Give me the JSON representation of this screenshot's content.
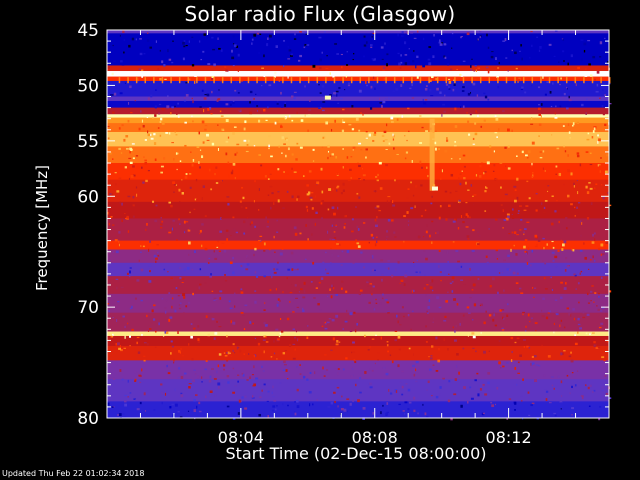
{
  "chart_data": {
    "type": "heatmap",
    "title": "Solar radio Flux (Glasgow)",
    "ylabel": "Frequency [MHz]",
    "xlabel": "Start Time (02-Dec-15 08:00:00)",
    "ylim": [
      45,
      80
    ],
    "xlim_minutes": [
      0,
      15
    ],
    "y_ticks": [
      "45",
      "50",
      "55",
      "60",
      "70",
      "80"
    ],
    "y_tick_values": [
      45,
      50,
      55,
      60,
      70,
      80
    ],
    "x_ticks": [
      "08:04",
      "08:08",
      "08:12"
    ],
    "x_tick_minutes": [
      4,
      8,
      12
    ],
    "bands": [
      {
        "from": 45.0,
        "to": 45.3,
        "level": 0.3
      },
      {
        "from": 45.3,
        "to": 48.2,
        "level": 0.12
      },
      {
        "from": 48.2,
        "to": 48.7,
        "level": 0.55
      },
      {
        "from": 48.7,
        "to": 49.2,
        "level": 1.0
      },
      {
        "from": 49.2,
        "to": 49.6,
        "level": 0.62
      },
      {
        "from": 49.6,
        "to": 51.0,
        "level": 0.18
      },
      {
        "from": 51.0,
        "to": 51.4,
        "level": 0.3
      },
      {
        "from": 51.4,
        "to": 52.0,
        "level": 0.14
      },
      {
        "from": 52.0,
        "to": 52.6,
        "level": 0.48
      },
      {
        "from": 52.6,
        "to": 52.9,
        "level": 0.9
      },
      {
        "from": 52.9,
        "to": 53.4,
        "level": 0.75
      },
      {
        "from": 53.4,
        "to": 54.2,
        "level": 0.7
      },
      {
        "from": 54.2,
        "to": 55.5,
        "level": 0.8
      },
      {
        "from": 55.5,
        "to": 57.0,
        "level": 0.7
      },
      {
        "from": 57.0,
        "to": 58.5,
        "level": 0.62
      },
      {
        "from": 58.5,
        "to": 60.5,
        "level": 0.56
      },
      {
        "from": 60.5,
        "to": 62.0,
        "level": 0.5
      },
      {
        "from": 62.0,
        "to": 64.0,
        "level": 0.46
      },
      {
        "from": 64.0,
        "to": 64.8,
        "level": 0.62
      },
      {
        "from": 64.8,
        "to": 66.0,
        "level": 0.4
      },
      {
        "from": 66.0,
        "to": 67.2,
        "level": 0.3
      },
      {
        "from": 67.2,
        "to": 68.8,
        "level": 0.46
      },
      {
        "from": 68.8,
        "to": 70.5,
        "level": 0.4
      },
      {
        "from": 70.5,
        "to": 72.2,
        "level": 0.44
      },
      {
        "from": 72.2,
        "to": 72.6,
        "level": 0.85
      },
      {
        "from": 72.6,
        "to": 73.5,
        "level": 0.5
      },
      {
        "from": 73.5,
        "to": 74.8,
        "level": 0.56
      },
      {
        "from": 74.8,
        "to": 76.5,
        "level": 0.36
      },
      {
        "from": 76.5,
        "to": 78.5,
        "level": 0.3
      },
      {
        "from": 78.5,
        "to": 80.0,
        "level": 0.2
      }
    ],
    "features": [
      {
        "kind": "vertical-burst",
        "minute": 9.7,
        "from": 53.0,
        "to": 59.5,
        "level": 0.78
      },
      {
        "kind": "spot",
        "minute": 9.8,
        "freq": 59.3,
        "level": 0.95
      },
      {
        "kind": "spot",
        "minute": 6.6,
        "freq": 51.1,
        "level": 0.9
      }
    ],
    "colormap": [
      "#000000",
      "#0000c8",
      "#4838d8",
      "#8030a0",
      "#c01818",
      "#ff3000",
      "#ff9a20",
      "#ffffa0",
      "#ffffff"
    ]
  },
  "footer": "Updated Thu Feb 22 01:02:34 2018"
}
